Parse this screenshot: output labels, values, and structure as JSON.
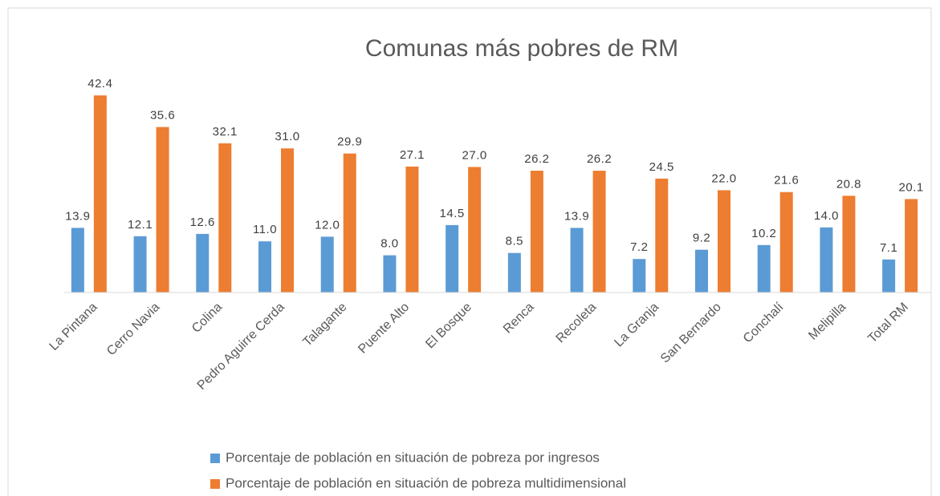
{
  "chart_data": {
    "type": "bar",
    "title": "Comunas más pobres de RM",
    "categories": [
      "La Pintana",
      "Cerro Navia",
      "Colina",
      "Pedro Aguirre Cerda",
      "Talagante",
      "Puente Alto",
      "El Bosque",
      "Renca",
      "Recoleta",
      "La Granja",
      "San Bernardo",
      "Conchalí",
      "Melipilla",
      "Total RM"
    ],
    "series": [
      {
        "name": "Porcentaje de población en situación de pobreza por ingresos",
        "color": "#5b9bd5",
        "values": [
          13.9,
          12.1,
          12.6,
          11,
          12,
          8,
          14.5,
          8.5,
          13.9,
          7.2,
          9.2,
          10.2,
          14,
          7.1
        ],
        "value_labels": [
          "13.9",
          "12.1",
          "12.6",
          "11.0",
          "12.0",
          "8.0",
          "14.5",
          "8.5",
          "13.9",
          "7.2",
          "9.2",
          "10.2",
          "14.0",
          "7.1"
        ]
      },
      {
        "name": "Porcentaje de población en situación de pobreza multidimensional",
        "color": "#ed7d31",
        "values": [
          42.4,
          35.6,
          32.1,
          31,
          29.9,
          27.1,
          27,
          26.2,
          26.2,
          24.5,
          22,
          21.6,
          20.8,
          20.1
        ],
        "value_labels": [
          "42.4",
          "35.6",
          "32.1",
          "31.0",
          "29.9",
          "27.1",
          "27.0",
          "26.2",
          "26.2",
          "24.5",
          "22.0",
          "21.6",
          "20.8",
          "20.1"
        ]
      }
    ],
    "ylim": [
      0,
      45
    ],
    "legend": "bottom"
  }
}
